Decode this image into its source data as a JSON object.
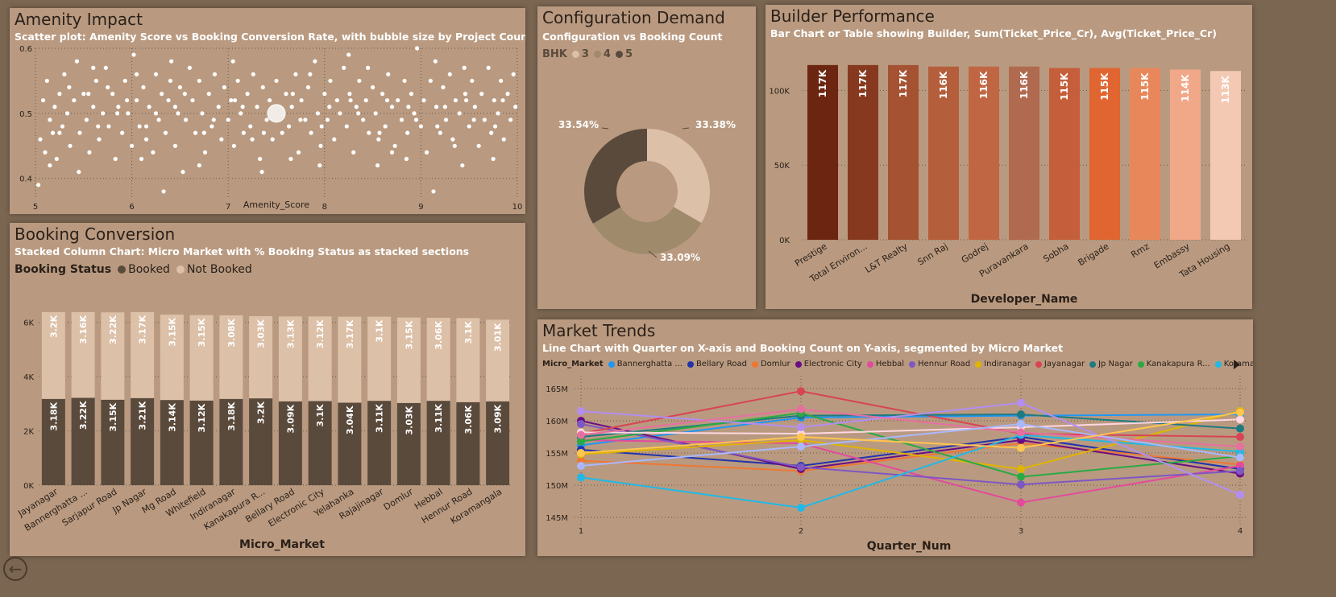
{
  "amenity": {
    "title": "Amenity Impact",
    "subtitle": "Scatter plot: Amenity Score vs Booking Conversion Rate, with bubble size by Project Count",
    "xlabel": "Amenity_Score"
  },
  "configuration": {
    "title": "Configuration Demand",
    "subtitle": "Configuration vs Booking Count",
    "legend_title": "BHK",
    "legend": [
      "3",
      "4",
      "5"
    ],
    "legend_colors": [
      "#dcc0a8",
      "#9f8a6c",
      "#5a4a3c"
    ]
  },
  "builder": {
    "title": "Builder Performance",
    "subtitle": "Bar Chart or Table showing Builder, Sum(Ticket_Price_Cr), Avg(Ticket_Price_Cr)",
    "xlabel": "Developer_Name"
  },
  "booking": {
    "title": "Booking Conversion",
    "subtitle": "Stacked Column Chart: Micro Market with % Booking Status as stacked sections",
    "legend_title": "Booking Status",
    "legend": [
      "Booked",
      "Not Booked"
    ],
    "legend_colors": [
      "#5a4a3c",
      "#dcc0a8"
    ],
    "xlabel": "Micro_Market"
  },
  "trends": {
    "title": "Market Trends",
    "subtitle": "Line Chart with Quarter on X-axis and Booking Count on Y-axis, segmented by Micro Market",
    "legend_title": "Micro_Market",
    "xlabel": "Quarter_Num"
  },
  "chart_data": [
    {
      "id": "amenity",
      "type": "scatter",
      "xlabel": "Amenity_Score",
      "ylabel": "",
      "xlim": [
        5,
        10
      ],
      "ylim": [
        0.37,
        0.6
      ],
      "xticks": [
        "5",
        "6",
        "7",
        "8",
        "9",
        "10"
      ],
      "yticks": [
        "0.4",
        "0.5",
        "0.6"
      ],
      "note": "~500 points, conversion rate ~0.40-0.60, one large bubble near (7.5, 0.50)",
      "points": [
        [
          5.03,
          0.39
        ],
        [
          5.05,
          0.46
        ],
        [
          5.08,
          0.52
        ],
        [
          5.1,
          0.44
        ],
        [
          5.12,
          0.55
        ],
        [
          5.15,
          0.49
        ],
        [
          5.18,
          0.47
        ],
        [
          5.2,
          0.51
        ],
        [
          5.22,
          0.43
        ],
        [
          5.25,
          0.53
        ],
        [
          5.28,
          0.48
        ],
        [
          5.3,
          0.56
        ],
        [
          5.33,
          0.5
        ],
        [
          5.36,
          0.45
        ],
        [
          5.4,
          0.52
        ],
        [
          5.43,
          0.58
        ],
        [
          5.46,
          0.47
        ],
        [
          5.5,
          0.53
        ],
        [
          5.53,
          0.49
        ],
        [
          5.56,
          0.44
        ],
        [
          5.6,
          0.51
        ],
        [
          5.63,
          0.55
        ],
        [
          5.66,
          0.46
        ],
        [
          5.7,
          0.5
        ],
        [
          5.73,
          0.57
        ],
        [
          5.76,
          0.48
        ],
        [
          5.8,
          0.53
        ],
        [
          5.83,
          0.43
        ],
        [
          5.86,
          0.51
        ],
        [
          5.9,
          0.47
        ],
        [
          5.93,
          0.55
        ],
        [
          5.96,
          0.5
        ],
        [
          6.0,
          0.45
        ],
        [
          6.02,
          0.59
        ],
        [
          6.05,
          0.52
        ],
        [
          6.08,
          0.48
        ],
        [
          6.12,
          0.54
        ],
        [
          6.15,
          0.46
        ],
        [
          6.18,
          0.51
        ],
        [
          6.22,
          0.44
        ],
        [
          6.25,
          0.56
        ],
        [
          6.28,
          0.49
        ],
        [
          6.31,
          0.53
        ],
        [
          6.35,
          0.47
        ],
        [
          6.38,
          0.52
        ],
        [
          6.41,
          0.58
        ],
        [
          6.45,
          0.45
        ],
        [
          6.48,
          0.5
        ],
        [
          6.5,
          0.54
        ],
        [
          6.53,
          0.41
        ],
        [
          6.56,
          0.49
        ],
        [
          6.6,
          0.57
        ],
        [
          6.63,
          0.52
        ],
        [
          6.66,
          0.47
        ],
        [
          6.7,
          0.55
        ],
        [
          6.73,
          0.5
        ],
        [
          6.76,
          0.44
        ],
        [
          6.8,
          0.53
        ],
        [
          6.83,
          0.48
        ],
        [
          6.86,
          0.56
        ],
        [
          6.9,
          0.51
        ],
        [
          6.93,
          0.46
        ],
        [
          6.96,
          0.54
        ],
        [
          7.0,
          0.49
        ],
        [
          7.03,
          0.52
        ],
        [
          7.06,
          0.45
        ],
        [
          7.1,
          0.55
        ],
        [
          7.13,
          0.5
        ],
        [
          7.16,
          0.47
        ],
        [
          7.2,
          0.53
        ],
        [
          7.23,
          0.48
        ],
        [
          7.26,
          0.56
        ],
        [
          7.3,
          0.51
        ],
        [
          7.33,
          0.43
        ],
        [
          7.36,
          0.54
        ],
        [
          7.4,
          0.49
        ],
        [
          7.43,
          0.52
        ],
        [
          7.46,
          0.46
        ],
        [
          7.5,
          0.55
        ],
        [
          7.53,
          0.5
        ],
        [
          7.56,
          0.47
        ],
        [
          7.6,
          0.53
        ],
        [
          7.63,
          0.48
        ],
        [
          7.66,
          0.51
        ],
        [
          7.7,
          0.56
        ],
        [
          7.73,
          0.44
        ],
        [
          7.76,
          0.52
        ],
        [
          7.8,
          0.49
        ],
        [
          7.83,
          0.54
        ],
        [
          7.86,
          0.47
        ],
        [
          7.9,
          0.58
        ],
        [
          7.93,
          0.5
        ],
        [
          7.96,
          0.45
        ],
        [
          8.0,
          0.53
        ],
        [
          8.03,
          0.49
        ],
        [
          8.06,
          0.55
        ],
        [
          8.1,
          0.46
        ],
        [
          8.13,
          0.52
        ],
        [
          8.16,
          0.5
        ],
        [
          8.2,
          0.57
        ],
        [
          8.23,
          0.48
        ],
        [
          8.26,
          0.53
        ],
        [
          8.3,
          0.44
        ],
        [
          8.33,
          0.51
        ],
        [
          8.36,
          0.55
        ],
        [
          8.4,
          0.49
        ],
        [
          8.43,
          0.52
        ],
        [
          8.46,
          0.47
        ],
        [
          8.5,
          0.54
        ],
        [
          8.53,
          0.5
        ],
        [
          8.56,
          0.46
        ],
        [
          8.6,
          0.53
        ],
        [
          8.63,
          0.48
        ],
        [
          8.66,
          0.56
        ],
        [
          8.7,
          0.51
        ],
        [
          8.73,
          0.45
        ],
        [
          8.76,
          0.52
        ],
        [
          8.8,
          0.49
        ],
        [
          8.83,
          0.55
        ],
        [
          8.86,
          0.47
        ],
        [
          8.9,
          0.53
        ],
        [
          8.93,
          0.5
        ],
        [
          8.96,
          0.6
        ],
        [
          9.0,
          0.48
        ],
        [
          9.03,
          0.52
        ],
        [
          9.06,
          0.44
        ],
        [
          9.1,
          0.55
        ],
        [
          9.13,
          0.38
        ],
        [
          9.16,
          0.51
        ],
        [
          9.2,
          0.47
        ],
        [
          9.23,
          0.54
        ],
        [
          9.26,
          0.49
        ],
        [
          9.3,
          0.56
        ],
        [
          9.33,
          0.46
        ],
        [
          9.36,
          0.52
        ],
        [
          9.4,
          0.5
        ],
        [
          9.43,
          0.42
        ],
        [
          9.46,
          0.53
        ],
        [
          9.5,
          0.48
        ],
        [
          9.53,
          0.55
        ],
        [
          9.56,
          0.51
        ],
        [
          9.6,
          0.45
        ],
        [
          9.63,
          0.53
        ],
        [
          9.66,
          0.49
        ],
        [
          9.7,
          0.57
        ],
        [
          9.73,
          0.47
        ],
        [
          9.76,
          0.52
        ],
        [
          9.8,
          0.5
        ],
        [
          9.83,
          0.55
        ],
        [
          9.86,
          0.46
        ],
        [
          9.9,
          0.53
        ],
        [
          9.93,
          0.49
        ],
        [
          9.96,
          0.56
        ],
        [
          9.98,
          0.51
        ],
        [
          5.15,
          0.42
        ],
        [
          5.45,
          0.41
        ],
        [
          5.75,
          0.54
        ],
        [
          6.1,
          0.43
        ],
        [
          6.4,
          0.55
        ],
        [
          6.7,
          0.42
        ],
        [
          7.05,
          0.58
        ],
        [
          7.35,
          0.41
        ],
        [
          7.65,
          0.43
        ],
        [
          7.95,
          0.42
        ],
        [
          8.25,
          0.59
        ],
        [
          8.55,
          0.42
        ],
        [
          8.85,
          0.43
        ],
        [
          9.15,
          0.58
        ],
        [
          9.45,
          0.57
        ],
        [
          9.75,
          0.43
        ],
        [
          5.35,
          0.54
        ],
        [
          5.65,
          0.48
        ],
        [
          5.95,
          0.52
        ],
        [
          6.25,
          0.5
        ],
        [
          6.55,
          0.53
        ],
        [
          6.85,
          0.49
        ],
        [
          7.15,
          0.51
        ],
        [
          7.45,
          0.5
        ],
        [
          7.75,
          0.49
        ],
        [
          8.05,
          0.51
        ],
        [
          8.35,
          0.5
        ],
        [
          8.65,
          0.52
        ],
        [
          8.95,
          0.49
        ],
        [
          9.25,
          0.51
        ],
        [
          9.55,
          0.49
        ],
        [
          9.85,
          0.52
        ],
        [
          5.25,
          0.47
        ],
        [
          5.55,
          0.53
        ],
        [
          5.85,
          0.5
        ],
        [
          6.15,
          0.48
        ],
        [
          6.45,
          0.51
        ],
        [
          6.75,
          0.47
        ],
        [
          7.07,
          0.52
        ],
        [
          7.37,
          0.47
        ],
        [
          7.67,
          0.53
        ],
        [
          7.97,
          0.48
        ],
        [
          8.27,
          0.52
        ],
        [
          8.57,
          0.47
        ],
        [
          8.87,
          0.51
        ],
        [
          9.17,
          0.48
        ],
        [
          9.47,
          0.52
        ],
        [
          9.77,
          0.48
        ],
        [
          6.33,
          0.38
        ],
        [
          8.45,
          0.57
        ],
        [
          5.6,
          0.57
        ],
        [
          7.25,
          0.46
        ],
        [
          8.7,
          0.44
        ],
        [
          9.35,
          0.45
        ],
        [
          6.05,
          0.56
        ],
        [
          7.85,
          0.56
        ]
      ],
      "big_bubble": [
        7.5,
        0.5
      ]
    },
    {
      "id": "configuration",
      "type": "pie",
      "labels": [
        "3",
        "4",
        "5"
      ],
      "values": [
        33.38,
        33.09,
        33.54
      ],
      "value_labels": [
        "33.38%",
        "33.09%",
        "33.54%"
      ],
      "colors": [
        "#dcc0a8",
        "#9f8a6c",
        "#5a4a3c"
      ]
    },
    {
      "id": "builder",
      "type": "bar",
      "categories": [
        "Prestige",
        "Total Environ...",
        "L&T Realty",
        "Snn Raj",
        "Godrej",
        "Puravankara",
        "Sobha",
        "Brigade",
        "Rmz",
        "Embassy",
        "Tata Housing"
      ],
      "values": [
        117,
        117,
        117,
        116,
        116,
        116,
        115,
        115,
        115,
        114,
        113
      ],
      "value_labels": [
        "117K",
        "117K",
        "117K",
        "116K",
        "116K",
        "116K",
        "115K",
        "115K",
        "115K",
        "114K",
        "113K"
      ],
      "colors": [
        "#6b2510",
        "#86391f",
        "#a55233",
        "#b45e3c",
        "#c06643",
        "#b06a4f",
        "#c55e3a",
        "#e06530",
        "#e8875a",
        "#f0a888",
        "#f3c9b4"
      ],
      "xlabel": "Developer_Name",
      "ylabel": "",
      "yticks": [
        "0K",
        "50K",
        "100K"
      ],
      "ylim": [
        0,
        125
      ]
    },
    {
      "id": "booking",
      "type": "bar",
      "stacked": true,
      "categories": [
        "Jayanagar",
        "Bannerghatta ...",
        "Sarjapur Road",
        "Jp Nagar",
        "Mg Road",
        "Whitefield",
        "Indiranagar",
        "Kanakapura R...",
        "Bellary Road",
        "Electronic City",
        "Yelahanka",
        "Rajajinagar",
        "Domlur",
        "Hebbal",
        "Hennur Road",
        "Koramangala"
      ],
      "series": [
        {
          "name": "Booked",
          "values": [
            3.18,
            3.22,
            3.15,
            3.21,
            3.14,
            3.12,
            3.18,
            3.2,
            3.09,
            3.1,
            3.04,
            3.11,
            3.03,
            3.11,
            3.06,
            3.09
          ],
          "labels": [
            "3.18K",
            "3.22K",
            "3.15K",
            "3.21K",
            "3.14K",
            "3.12K",
            "3.18K",
            "3.2K",
            "3.09K",
            "3.1K",
            "3.04K",
            "3.11K",
            "3.03K",
            "3.11K",
            "3.06K",
            "3.09K"
          ]
        },
        {
          "name": "Not Booked",
          "values": [
            3.2,
            3.16,
            3.22,
            3.17,
            3.15,
            3.15,
            3.08,
            3.03,
            3.13,
            3.12,
            3.17,
            3.1,
            3.15,
            3.06,
            3.1,
            3.01
          ],
          "labels": [
            "3.2K",
            "3.16K",
            "3.22K",
            "3.17K",
            "3.15K",
            "3.15K",
            "3.08K",
            "3.03K",
            "3.13K",
            "3.12K",
            "3.17K",
            "3.1K",
            "3.15K",
            "3.06K",
            "3.1K",
            "3.01K"
          ]
        }
      ],
      "colors": [
        "#5a4a3c",
        "#dcc0a8"
      ],
      "xlabel": "Micro_Market",
      "ylabel": "",
      "yticks": [
        "0K",
        "2K",
        "4K",
        "6K"
      ],
      "ylim": [
        0,
        7
      ]
    },
    {
      "id": "trends",
      "type": "line",
      "x": [
        1,
        2,
        3,
        4
      ],
      "xticks": [
        "1",
        "2",
        "3",
        "4"
      ],
      "yticks": [
        "145M",
        "150M",
        "155M",
        "160M",
        "165M"
      ],
      "ylim": [
        144,
        166.5
      ],
      "xlabel": "Quarter_Num",
      "ylabel": "",
      "legend_visible": [
        "Bannerghatta ...",
        "Bellary Road",
        "Domlur",
        "Electronic City",
        "Hebbal",
        "Hennur Road",
        "Indiranagar",
        "Jayanagar",
        "Jp Nagar",
        "Kanakapura R...",
        "Koramangala"
      ],
      "series": [
        {
          "name": "Bannerghatta ...",
          "color": "#2196f3",
          "values": [
            156.2,
            160.5,
            160.8,
            161.0
          ]
        },
        {
          "name": "Bellary Road",
          "color": "#2233aa",
          "values": [
            155.5,
            153.0,
            157.5,
            152.5
          ]
        },
        {
          "name": "Domlur",
          "color": "#ee7733",
          "values": [
            153.8,
            152.2,
            156.5,
            153.2
          ]
        },
        {
          "name": "Electronic City",
          "color": "#6a0d83",
          "values": [
            160.0,
            152.5,
            157.0,
            151.8
          ]
        },
        {
          "name": "Hebbal",
          "color": "#e24b9c",
          "values": [
            157.0,
            156.5,
            147.3,
            153.0
          ]
        },
        {
          "name": "Hennur Road",
          "color": "#7e57c2",
          "values": [
            159.5,
            152.8,
            150.1,
            152.2
          ]
        },
        {
          "name": "Indiranagar",
          "color": "#e0b400",
          "values": [
            154.8,
            157.0,
            152.5,
            161.5
          ]
        },
        {
          "name": "Jayanagar",
          "color": "#d84455",
          "values": [
            158.0,
            164.6,
            158.0,
            157.5
          ]
        },
        {
          "name": "Jp Nagar",
          "color": "#1f7a80",
          "values": [
            157.5,
            160.8,
            161.0,
            158.8
          ]
        },
        {
          "name": "Kanakapura R...",
          "color": "#2aaa44",
          "values": [
            156.8,
            161.2,
            151.3,
            154.5
          ]
        },
        {
          "name": "Koramangala",
          "color": "#22b8e6",
          "values": [
            151.2,
            146.5,
            157.8,
            155.2
          ]
        },
        {
          "color": "#ffd7e0",
          "values": [
            158.2,
            158.0,
            159.0,
            160.2
          ]
        },
        {
          "color": "#b38ef0",
          "values": [
            161.5,
            159.0,
            162.8,
            148.5
          ]
        },
        {
          "color": "#e76fa0",
          "values": [
            157.8,
            161.8,
            158.2,
            156.0
          ]
        },
        {
          "color": "#a9b8ff",
          "values": [
            153.0,
            156.0,
            159.5,
            154.3
          ]
        },
        {
          "color": "#ffc64f",
          "values": [
            155.0,
            157.5,
            155.8,
            161.3
          ]
        }
      ]
    }
  ]
}
